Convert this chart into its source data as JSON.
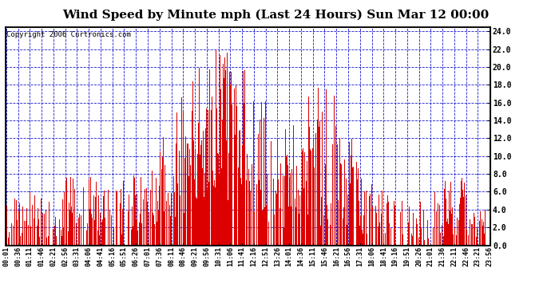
{
  "title": "Wind Speed by Minute mph (Last 24 Hours) Sun Mar 12 00:00",
  "copyright": "Copyright 2006 Curtronics.com",
  "ylabel_right_ticks": [
    0.0,
    2.0,
    4.0,
    6.0,
    8.0,
    10.0,
    12.0,
    14.0,
    16.0,
    18.0,
    20.0,
    22.0,
    24.0
  ],
  "ylim": [
    0,
    24.5
  ],
  "bar_color": "#dd0000",
  "grid_color": "#0000cc",
  "background_color": "#ffffff",
  "title_fontsize": 11,
  "copyright_fontsize": 6.5,
  "tick_fontsize": 6,
  "x_tick_labels": [
    "00:01",
    "00:36",
    "01:11",
    "01:46",
    "02:21",
    "02:56",
    "03:31",
    "04:06",
    "04:41",
    "05:16",
    "05:51",
    "06:26",
    "07:01",
    "07:36",
    "08:11",
    "08:46",
    "09:21",
    "09:56",
    "10:31",
    "11:06",
    "11:41",
    "12:16",
    "12:51",
    "13:26",
    "14:01",
    "14:36",
    "15:11",
    "15:46",
    "16:21",
    "16:56",
    "17:31",
    "18:06",
    "18:41",
    "19:16",
    "19:51",
    "20:26",
    "21:01",
    "21:36",
    "22:11",
    "22:46",
    "23:21",
    "23:56"
  ]
}
